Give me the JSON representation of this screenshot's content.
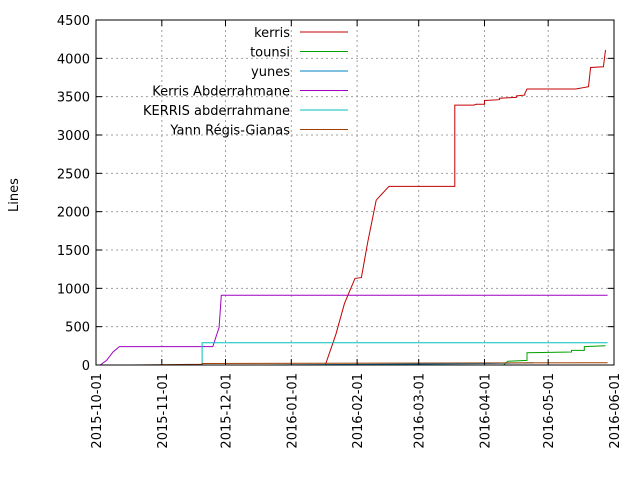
{
  "chart_data": {
    "type": "line",
    "title": "",
    "xlabel": "",
    "ylabel": "Lines",
    "ylim": [
      0,
      4500
    ],
    "xlim": [
      "2015-10-01",
      "2016-06-01"
    ],
    "x_ticks": [
      "2015-10-01",
      "2015-11-01",
      "2015-12-01",
      "2016-01-01",
      "2016-02-01",
      "2016-03-01",
      "2016-04-01",
      "2016-05-01",
      "2016-06-01"
    ],
    "y_ticks": [
      0,
      500,
      1000,
      1500,
      2000,
      2500,
      3000,
      3500,
      4000,
      4500
    ],
    "grid": true,
    "legend_position": "top-left",
    "series": [
      {
        "name": "kerris",
        "color": "#c00000",
        "points": [
          [
            "2016-01-17",
            0
          ],
          [
            "2016-01-22",
            400
          ],
          [
            "2016-01-26",
            800
          ],
          [
            "2016-01-29",
            1000
          ],
          [
            "2016-01-31",
            1130
          ],
          [
            "2016-02-03",
            1140
          ],
          [
            "2016-02-06",
            1600
          ],
          [
            "2016-02-10",
            2150
          ],
          [
            "2016-02-15",
            2300
          ],
          [
            "2016-02-16",
            2330
          ],
          [
            "2016-03-18",
            2330
          ],
          [
            "2016-03-18",
            3390
          ],
          [
            "2016-03-27",
            3390
          ],
          [
            "2016-03-28",
            3400
          ],
          [
            "2016-04-01",
            3400
          ],
          [
            "2016-04-01",
            3450
          ],
          [
            "2016-04-08",
            3460
          ],
          [
            "2016-04-08",
            3480
          ],
          [
            "2016-04-16",
            3490
          ],
          [
            "2016-04-16",
            3510
          ],
          [
            "2016-04-20",
            3520
          ],
          [
            "2016-04-20",
            3540
          ],
          [
            "2016-04-21",
            3600
          ],
          [
            "2016-05-14",
            3600
          ],
          [
            "2016-05-20",
            3630
          ],
          [
            "2016-05-21",
            3880
          ],
          [
            "2016-05-27",
            3890
          ],
          [
            "2016-05-28",
            4110
          ]
        ]
      },
      {
        "name": "tounsi",
        "color": "#00a000",
        "points": [
          [
            "2016-04-10",
            0
          ],
          [
            "2016-04-12",
            50
          ],
          [
            "2016-04-21",
            60
          ],
          [
            "2016-04-21",
            160
          ],
          [
            "2016-05-12",
            170
          ],
          [
            "2016-05-12",
            190
          ],
          [
            "2016-05-18",
            190
          ],
          [
            "2016-05-18",
            240
          ],
          [
            "2016-05-28",
            250
          ]
        ]
      },
      {
        "name": "yunes",
        "color": "#0080c0",
        "points": [
          [
            "2015-10-01",
            0
          ],
          [
            "2015-12-20",
            0
          ],
          [
            "2016-04-03",
            20
          ],
          [
            "2016-04-24",
            30
          ]
        ]
      },
      {
        "name": "Kerris Abderrahmane",
        "color": "#a000c0",
        "points": [
          [
            "2015-10-03",
            0
          ],
          [
            "2015-10-06",
            60
          ],
          [
            "2015-10-09",
            170
          ],
          [
            "2015-10-12",
            240
          ],
          [
            "2015-11-25",
            240
          ],
          [
            "2015-11-28",
            490
          ],
          [
            "2015-11-29",
            910
          ],
          [
            "2016-05-29",
            910
          ]
        ]
      },
      {
        "name": "KERRIS abderrahmane",
        "color": "#00c0c0",
        "points": [
          [
            "2015-10-01",
            0
          ],
          [
            "2015-11-20",
            0
          ],
          [
            "2015-11-20",
            290
          ],
          [
            "2016-05-29",
            290
          ]
        ]
      },
      {
        "name": "Yann Régis-Gianas",
        "color": "#a04000",
        "points": [
          [
            "2015-10-18",
            0
          ],
          [
            "2015-11-20",
            10
          ],
          [
            "2015-11-20",
            20
          ],
          [
            "2016-05-29",
            30
          ]
        ]
      }
    ]
  }
}
